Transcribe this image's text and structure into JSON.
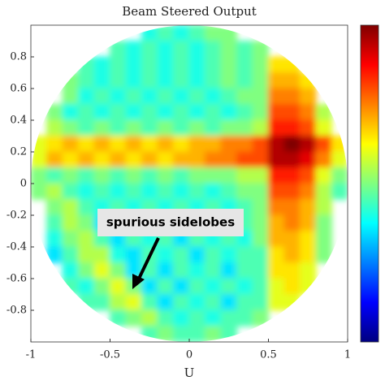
{
  "chart_data": {
    "type": "heatmap",
    "title": "Beam Steered Output",
    "x_label": "U",
    "annotation": "spurious sidelobes",
    "colormap": "jet",
    "zlim": [
      0,
      1
    ],
    "xlim": [
      -1,
      1
    ],
    "ylim": [
      -1,
      1
    ],
    "xticks": [
      -1,
      -0.5,
      0,
      0.5,
      1
    ],
    "yticks": [
      -0.8,
      -0.6,
      -0.4,
      -0.2,
      0,
      0.2,
      0.4,
      0.6,
      0.8
    ],
    "x": [
      -0.95,
      -0.85,
      -0.75,
      -0.65,
      -0.55,
      -0.45,
      -0.35,
      -0.25,
      -0.15,
      -0.05,
      0.05,
      0.15,
      0.25,
      0.35,
      0.45,
      0.55,
      0.65,
      0.75,
      0.85,
      0.95
    ],
    "y": [
      0.95,
      0.85,
      0.75,
      0.65,
      0.55,
      0.45,
      0.35,
      0.25,
      0.15,
      0.05,
      -0.05,
      -0.15,
      -0.25,
      -0.35,
      -0.45,
      -0.55,
      -0.65,
      -0.75,
      -0.85,
      -0.95
    ],
    "z": [
      [
        null,
        null,
        null,
        null,
        null,
        null,
        null,
        0.4,
        0.45,
        0.4,
        0.45,
        0.5,
        0.5,
        null,
        null,
        null,
        null,
        null,
        null,
        null
      ],
      [
        null,
        null,
        null,
        null,
        null,
        0.45,
        0.4,
        0.45,
        0.4,
        0.45,
        0.4,
        0.45,
        0.5,
        0.45,
        0.5,
        null,
        null,
        null,
        null,
        null
      ],
      [
        null,
        null,
        null,
        0.45,
        0.4,
        0.45,
        0.4,
        0.45,
        0.4,
        0.45,
        0.4,
        0.45,
        0.5,
        0.45,
        0.5,
        0.65,
        0.65,
        null,
        null,
        null
      ],
      [
        null,
        null,
        0.5,
        0.45,
        0.4,
        0.45,
        0.4,
        0.45,
        0.4,
        0.45,
        0.4,
        0.45,
        0.5,
        0.45,
        0.5,
        0.7,
        0.7,
        0.65,
        null,
        null
      ],
      [
        null,
        null,
        0.5,
        0.4,
        0.45,
        0.4,
        0.45,
        0.4,
        0.45,
        0.4,
        0.45,
        0.4,
        0.45,
        0.5,
        0.5,
        0.75,
        0.75,
        0.7,
        null,
        null
      ],
      [
        null,
        0.5,
        0.4,
        0.45,
        0.4,
        0.45,
        0.4,
        0.45,
        0.4,
        0.45,
        0.4,
        0.45,
        0.4,
        0.45,
        0.5,
        0.8,
        0.8,
        0.75,
        0.55,
        null
      ],
      [
        null,
        0.55,
        0.5,
        0.45,
        0.5,
        0.45,
        0.5,
        0.45,
        0.5,
        0.45,
        0.5,
        0.45,
        0.5,
        0.5,
        0.55,
        0.85,
        0.85,
        0.8,
        0.6,
        null
      ],
      [
        0.6,
        0.65,
        0.7,
        0.65,
        0.7,
        0.65,
        0.7,
        0.65,
        0.7,
        0.65,
        0.7,
        0.7,
        0.75,
        0.75,
        0.8,
        0.95,
        1,
        0.95,
        0.8,
        0.65
      ],
      [
        0.6,
        0.7,
        0.65,
        0.7,
        0.65,
        0.7,
        0.65,
        0.7,
        0.65,
        0.7,
        0.7,
        0.75,
        0.75,
        0.8,
        0.8,
        0.95,
        0.95,
        0.9,
        0.75,
        0.6
      ],
      [
        0.5,
        0.45,
        0.5,
        0.45,
        0.5,
        0.45,
        0.5,
        0.45,
        0.5,
        0.45,
        0.5,
        0.5,
        0.5,
        0.55,
        0.55,
        0.85,
        0.85,
        0.8,
        0.6,
        0.5
      ],
      [
        0.5,
        0.55,
        0.45,
        0.4,
        0.45,
        0.4,
        0.45,
        0.4,
        0.45,
        0.4,
        0.45,
        0.4,
        0.45,
        0.5,
        0.5,
        0.8,
        0.8,
        0.75,
        0.55,
        0.45
      ],
      [
        null,
        0.5,
        0.55,
        0.45,
        0.4,
        0.45,
        0.4,
        0.45,
        0.4,
        0.45,
        0.4,
        0.45,
        0.4,
        0.45,
        0.5,
        0.75,
        0.75,
        0.7,
        0.55,
        null
      ],
      [
        null,
        0.45,
        0.55,
        0.5,
        0.35,
        0.45,
        0.4,
        0.45,
        0.35,
        0.45,
        0.4,
        0.45,
        0.35,
        0.45,
        0.5,
        0.7,
        0.75,
        0.7,
        0.5,
        null
      ],
      [
        null,
        0.4,
        0.5,
        0.55,
        0.45,
        0.35,
        0.45,
        0.4,
        0.45,
        0.35,
        0.45,
        0.4,
        0.45,
        0.4,
        0.5,
        0.7,
        0.7,
        0.65,
        0.5,
        null
      ],
      [
        null,
        0.35,
        0.45,
        0.55,
        0.55,
        0.4,
        0.35,
        0.45,
        0.4,
        0.45,
        0.35,
        0.45,
        0.4,
        0.45,
        0.45,
        0.65,
        0.7,
        0.65,
        0.5,
        null
      ],
      [
        null,
        null,
        0.4,
        0.5,
        0.6,
        0.5,
        0.35,
        0.45,
        0.35,
        0.45,
        0.4,
        0.45,
        0.35,
        0.45,
        0.45,
        0.65,
        0.65,
        0.6,
        null,
        null
      ],
      [
        null,
        null,
        0.45,
        0.4,
        0.5,
        0.6,
        0.5,
        0.35,
        0.45,
        0.35,
        0.45,
        0.4,
        0.45,
        0.4,
        0.45,
        0.6,
        0.65,
        0.6,
        null,
        null
      ],
      [
        null,
        null,
        null,
        0.45,
        0.45,
        0.55,
        0.6,
        0.45,
        0.35,
        0.45,
        0.4,
        0.45,
        0.35,
        0.45,
        0.45,
        0.6,
        0.6,
        null,
        null,
        null
      ],
      [
        null,
        null,
        null,
        null,
        null,
        0.45,
        0.5,
        0.55,
        0.45,
        0.4,
        0.45,
        0.4,
        0.45,
        0.45,
        0.5,
        null,
        null,
        null,
        null,
        null
      ],
      [
        null,
        null,
        null,
        null,
        null,
        null,
        null,
        0.45,
        0.5,
        0.45,
        0.45,
        0.5,
        0.45,
        null,
        null,
        null,
        null,
        null,
        null,
        null
      ]
    ]
  }
}
